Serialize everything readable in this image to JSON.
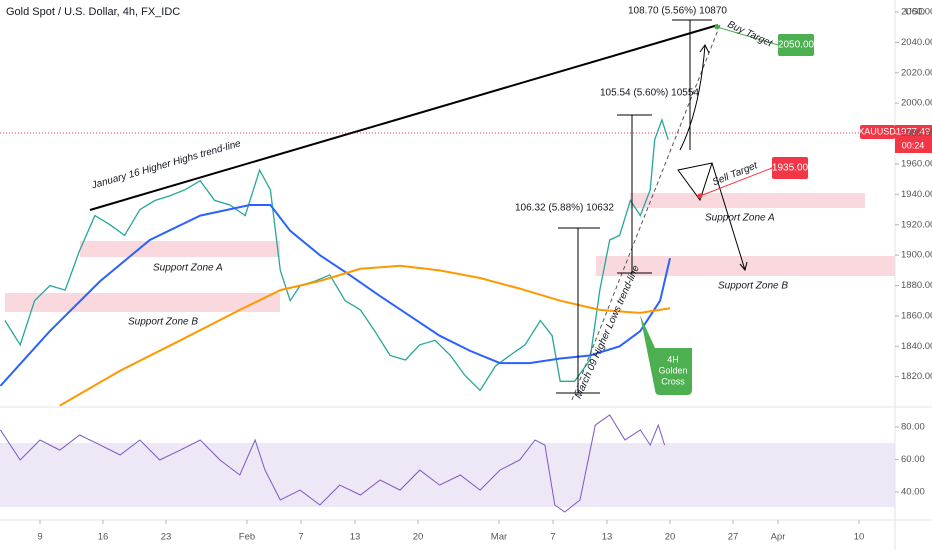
{
  "chart_data": [
    {
      "type": "line",
      "title": "Gold Spot / U.S. Dollar, 4h, FX_IDC",
      "unit": "USD",
      "symbol": "XAUUSD",
      "xlim": [
        4.556,
        104
      ],
      "ylim": [
        1801.4,
        2067.9
      ],
      "yticks": [
        {
          "value": 1820,
          "label": "1820.00"
        },
        {
          "value": 1840,
          "label": "1840.00"
        },
        {
          "value": 1860,
          "label": "1860.00"
        },
        {
          "value": 1880,
          "label": "1880.00"
        },
        {
          "value": 1900,
          "label": "1900.00"
        },
        {
          "value": 1920,
          "label": "1920.00"
        },
        {
          "value": 1940,
          "label": "1940.00"
        },
        {
          "value": 1960,
          "label": "1960.00"
        },
        {
          "value": 1980,
          "label": "1980.00"
        },
        {
          "value": 2000,
          "label": "2000.00"
        },
        {
          "value": 2020,
          "label": "2020.00"
        },
        {
          "value": 2040,
          "label": "2040.00"
        },
        {
          "value": 2060,
          "label": "2060.00"
        }
      ],
      "series": [
        {
          "color": "#26a69a",
          "x": [
            5.1,
            6.8,
            8.4,
            10.1,
            11.8,
            13.4,
            15.1,
            16.8,
            18.4,
            20.1,
            21.8,
            23.4,
            25.1,
            26.8,
            28.4,
            30.1,
            31.8,
            33.4,
            34.6,
            35.7,
            36.8,
            37.9,
            39.6,
            41.2,
            42.9,
            44.6,
            46.2,
            47.9,
            49.6,
            51.2,
            52.9,
            54.6,
            56.2,
            57.9,
            59.6,
            61.2,
            62.9,
            64.6,
            65.9,
            66.8,
            68.4,
            70.1,
            71.2,
            72.3,
            73.4,
            74.6,
            75.7,
            76.8,
            77.3,
            78.1,
            78.8
          ],
          "values": [
            1857,
            1841,
            1870,
            1880,
            1877,
            1903,
            1926,
            1920,
            1913,
            1930,
            1936,
            1939,
            1943,
            1949,
            1936,
            1933,
            1926,
            1956,
            1943,
            1890,
            1870,
            1880,
            1883,
            1887,
            1870,
            1864,
            1850,
            1834,
            1831,
            1841,
            1844,
            1834,
            1821,
            1811,
            1827,
            1834,
            1841,
            1857,
            1847,
            1817,
            1817,
            1831,
            1877,
            1910,
            1913,
            1936,
            1926,
            1943,
            1976,
            1989,
            1976
          ]
        },
        {
          "color": "#2962ff",
          "x": [
            4.6,
            10.1,
            15.7,
            21.2,
            26.8,
            32.3,
            34.6,
            36.8,
            40.1,
            43.4,
            46.8,
            50.1,
            53.4,
            56.8,
            60.1,
            63.4,
            66.8,
            70.1,
            73.4,
            75.7,
            77.9,
            79
          ],
          "values": [
            1814,
            1850,
            1883,
            1910,
            1926,
            1933,
            1933,
            1916,
            1900,
            1887,
            1873,
            1860,
            1847,
            1837,
            1829,
            1829,
            1832,
            1834,
            1840,
            1850,
            1870,
            1898
          ]
        },
        {
          "color": "#ff9800",
          "x": [
            11.2,
            17.9,
            24.6,
            31.2,
            35.7,
            40.1,
            44.6,
            49,
            53.4,
            57.9,
            62.3,
            66.8,
            71.2,
            75.7,
            79
          ],
          "values": [
            1801,
            1824,
            1844,
            1864,
            1877,
            1883,
            1891,
            1893,
            1890,
            1885,
            1878,
            1870,
            1864,
            1862,
            1865
          ]
        }
      ],
      "annotations": [
        "January 16 Higher Highs trend-line",
        "Support Zone A",
        "Support Zone B",
        "Support Zone A",
        "Support Zone B",
        "March 09 Higher Lows trend-line",
        "4H",
        "Golden",
        "Cross",
        "106.32 (5.88%) 10632",
        "105.54 (5.60%) 10554",
        "108.70 (5.56%) 10870",
        "Buy Target",
        "Sell Target",
        "2050.00",
        "1935.00",
        "1977.49",
        "00:24"
      ]
    },
    {
      "type": "line",
      "color": "#7e57c2",
      "xlim": [
        4.556,
        104
      ],
      "ylim": [
        22.8,
        91.7
      ],
      "yticks": [
        {
          "value": 40,
          "label": "40.00"
        },
        {
          "value": 60,
          "label": "60.00"
        },
        {
          "value": 80,
          "label": "80.00"
        }
      ],
      "xticks": [
        9,
        16,
        23,
        {
          "value": 32,
          "label": "Feb"
        },
        {
          "value": 38,
          "label": "7"
        },
        {
          "value": 44,
          "label": "13"
        },
        {
          "value": 51,
          "label": "20"
        },
        {
          "value": 60,
          "label": "Mar"
        },
        {
          "value": 66,
          "label": "7"
        },
        {
          "value": 72,
          "label": "13"
        },
        {
          "value": 79,
          "label": "20"
        },
        {
          "value": 86,
          "label": "27"
        },
        {
          "value": 91,
          "label": "Apr"
        },
        {
          "value": 100,
          "label": "10"
        }
      ],
      "x": [
        4.6,
        6.8,
        9,
        11.2,
        13.4,
        15.7,
        17.9,
        20.1,
        22.3,
        24.6,
        26.8,
        29,
        31.2,
        32.9,
        34,
        35.7,
        37.9,
        40.1,
        42.3,
        44.6,
        46.8,
        49,
        51.2,
        53.4,
        55.7,
        57.9,
        60.1,
        62.3,
        64,
        65.1,
        66.2,
        67.3,
        69,
        70.7,
        72.3,
        74,
        75.7,
        76.8,
        77.7,
        78.4
      ],
      "values": [
        78.2,
        59.7,
        72,
        65.8,
        75.1,
        68.9,
        62.8,
        72,
        59.7,
        65.8,
        72,
        59.7,
        50.5,
        72,
        53.5,
        35.1,
        41.2,
        32,
        44.3,
        38.2,
        47.4,
        41.2,
        53.5,
        44.3,
        50.5,
        41.2,
        53.5,
        59.7,
        72,
        68.9,
        32,
        27.7,
        35.1,
        81.2,
        87.4,
        72,
        78.2,
        68.9,
        81.2,
        68.9
      ]
    }
  ]
}
